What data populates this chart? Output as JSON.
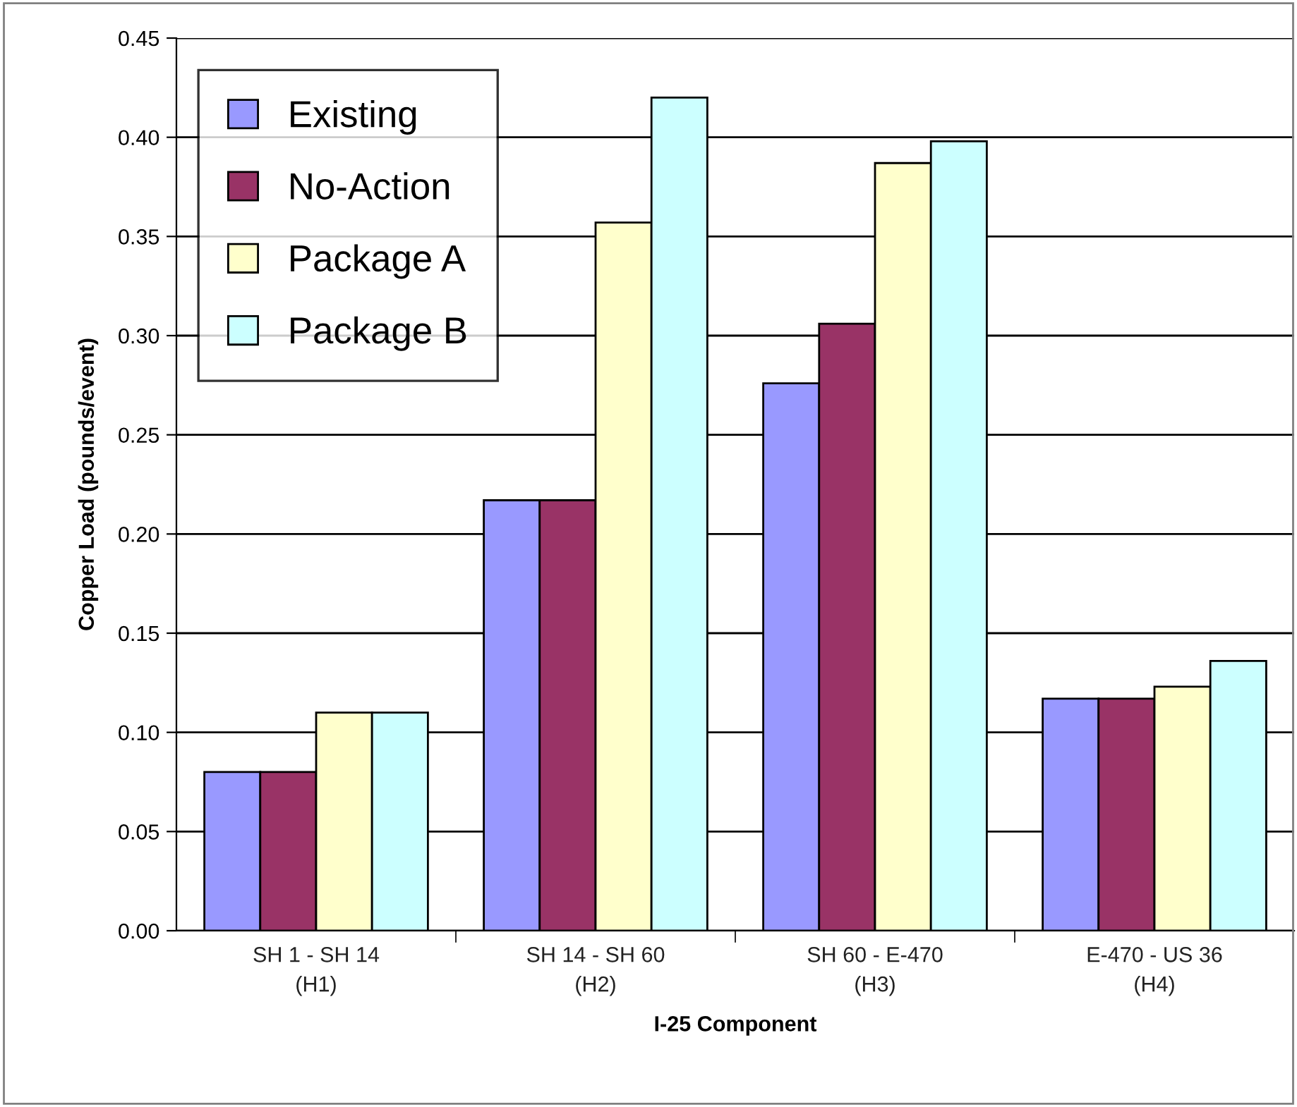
{
  "chart_data": {
    "type": "bar",
    "xlabel": "I-25 Component",
    "ylabel": "Copper Load (pounds/event)",
    "categories": [
      "SH 1 - SH 14\n(H1)",
      "SH 14 - SH 60\n(H2)",
      "SH 60 - E-470\n(H3)",
      "E-470 - US 36\n(H4)"
    ],
    "series": [
      {
        "name": "Existing",
        "color": "#9999ff",
        "values": [
          0.08,
          0.217,
          0.276,
          0.117
        ]
      },
      {
        "name": "No-Action",
        "color": "#993366",
        "values": [
          0.08,
          0.217,
          0.306,
          0.117
        ]
      },
      {
        "name": "Package A",
        "color": "#ffffcc",
        "values": [
          0.11,
          0.357,
          0.387,
          0.123
        ]
      },
      {
        "name": "Package B",
        "color": "#ccffff",
        "values": [
          0.11,
          0.42,
          0.398,
          0.136
        ]
      }
    ],
    "ylim": [
      0,
      0.45
    ],
    "yticks": [
      {
        "value": 0,
        "label": "0.00"
      },
      {
        "value": 0.05,
        "label": "0.05"
      },
      {
        "value": 0.1,
        "label": "0.10"
      },
      {
        "value": 0.15,
        "label": "0.15"
      },
      {
        "value": 0.2,
        "label": "0.20"
      },
      {
        "value": 0.25,
        "label": "0.25"
      },
      {
        "value": 0.3,
        "label": "0.30"
      },
      {
        "value": 0.35,
        "label": "0.35"
      },
      {
        "value": 0.4,
        "label": "0.40"
      },
      {
        "value": 0.45,
        "label": "0.45"
      }
    ],
    "grid": "y",
    "legend": "top left"
  }
}
